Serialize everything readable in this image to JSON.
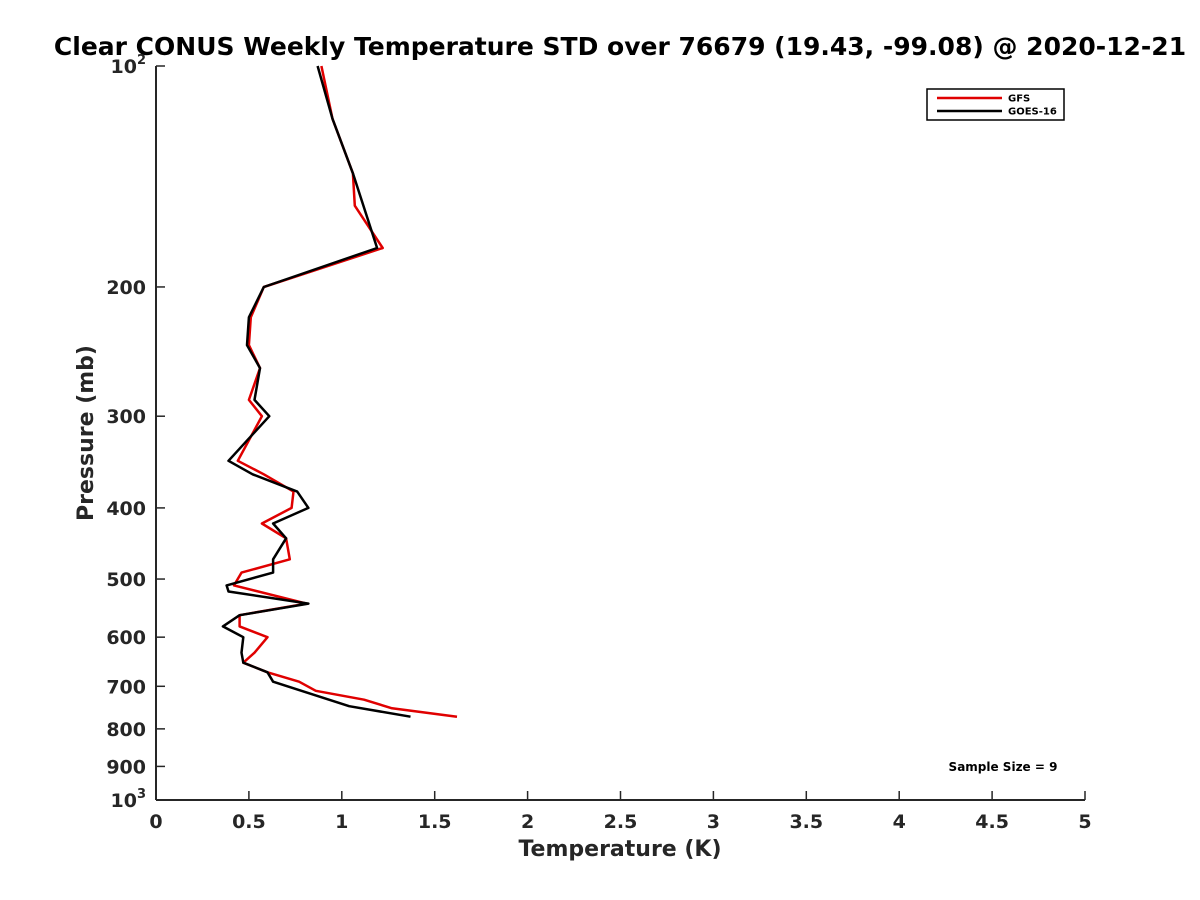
{
  "chart_data": {
    "type": "line",
    "title": "Clear CONUS Weekly Temperature STD over 76679 (19.43, -99.08) @ 2020-12-21",
    "xlabel": "Temperature (K)",
    "ylabel": "Pressure (mb)",
    "xlim": [
      0,
      5
    ],
    "ylim": [
      100,
      1000
    ],
    "y_scale": "log",
    "y_reversed": true,
    "grid": false,
    "legend_position": "top-right",
    "x_ticks": [
      "0",
      "0.5",
      "1",
      "1.5",
      "2",
      "2.5",
      "3",
      "3.5",
      "4",
      "4.5",
      "5"
    ],
    "x_tick_values": [
      0,
      0.5,
      1,
      1.5,
      2,
      2.5,
      3,
      3.5,
      4,
      4.5,
      5
    ],
    "y_ticks": [
      {
        "value": 100,
        "base": "10",
        "exp": "2"
      },
      {
        "value": 200,
        "label": "200"
      },
      {
        "value": 300,
        "label": "300"
      },
      {
        "value": 400,
        "label": "400"
      },
      {
        "value": 500,
        "label": "500"
      },
      {
        "value": 600,
        "label": "600"
      },
      {
        "value": 700,
        "label": "700"
      },
      {
        "value": 800,
        "label": "800"
      },
      {
        "value": 900,
        "label": "900"
      },
      {
        "value": 1000,
        "base": "10",
        "exp": "3"
      }
    ],
    "series": [
      {
        "name": "GFS",
        "color": "#e00000",
        "x": [
          0.89,
          0.95,
          1.06,
          1.07,
          1.22,
          0.58,
          0.51,
          0.5,
          0.56,
          0.5,
          0.57,
          0.44,
          0.58,
          0.74,
          0.73,
          0.57,
          0.7,
          0.72,
          0.46,
          0.42,
          0.81,
          0.45,
          0.45,
          0.6,
          0.53,
          0.47,
          0.6,
          0.77,
          0.86,
          1.12,
          1.27,
          1.62
        ],
        "y": [
          100,
          118,
          140,
          155,
          177,
          200,
          220,
          240,
          258,
          285,
          300,
          345,
          360,
          380,
          400,
          420,
          440,
          470,
          490,
          510,
          540,
          560,
          580,
          600,
          630,
          650,
          670,
          690,
          710,
          730,
          750,
          770
        ]
      },
      {
        "name": "GOES-16",
        "color": "#000000",
        "x": [
          0.87,
          0.95,
          1.06,
          1.19,
          0.58,
          0.5,
          0.49,
          0.56,
          0.53,
          0.61,
          0.39,
          0.52,
          0.76,
          0.82,
          0.63,
          0.7,
          0.63,
          0.63,
          0.38,
          0.39,
          0.82,
          0.45,
          0.36,
          0.47,
          0.46,
          0.47,
          0.6,
          0.63,
          1.04,
          1.37
        ],
        "y": [
          100,
          118,
          140,
          177,
          200,
          220,
          240,
          258,
          285,
          300,
          345,
          360,
          380,
          400,
          420,
          440,
          470,
          490,
          510,
          520,
          540,
          560,
          580,
          600,
          630,
          650,
          670,
          690,
          745,
          770
        ]
      }
    ],
    "annotation": "Sample Size = 9"
  }
}
